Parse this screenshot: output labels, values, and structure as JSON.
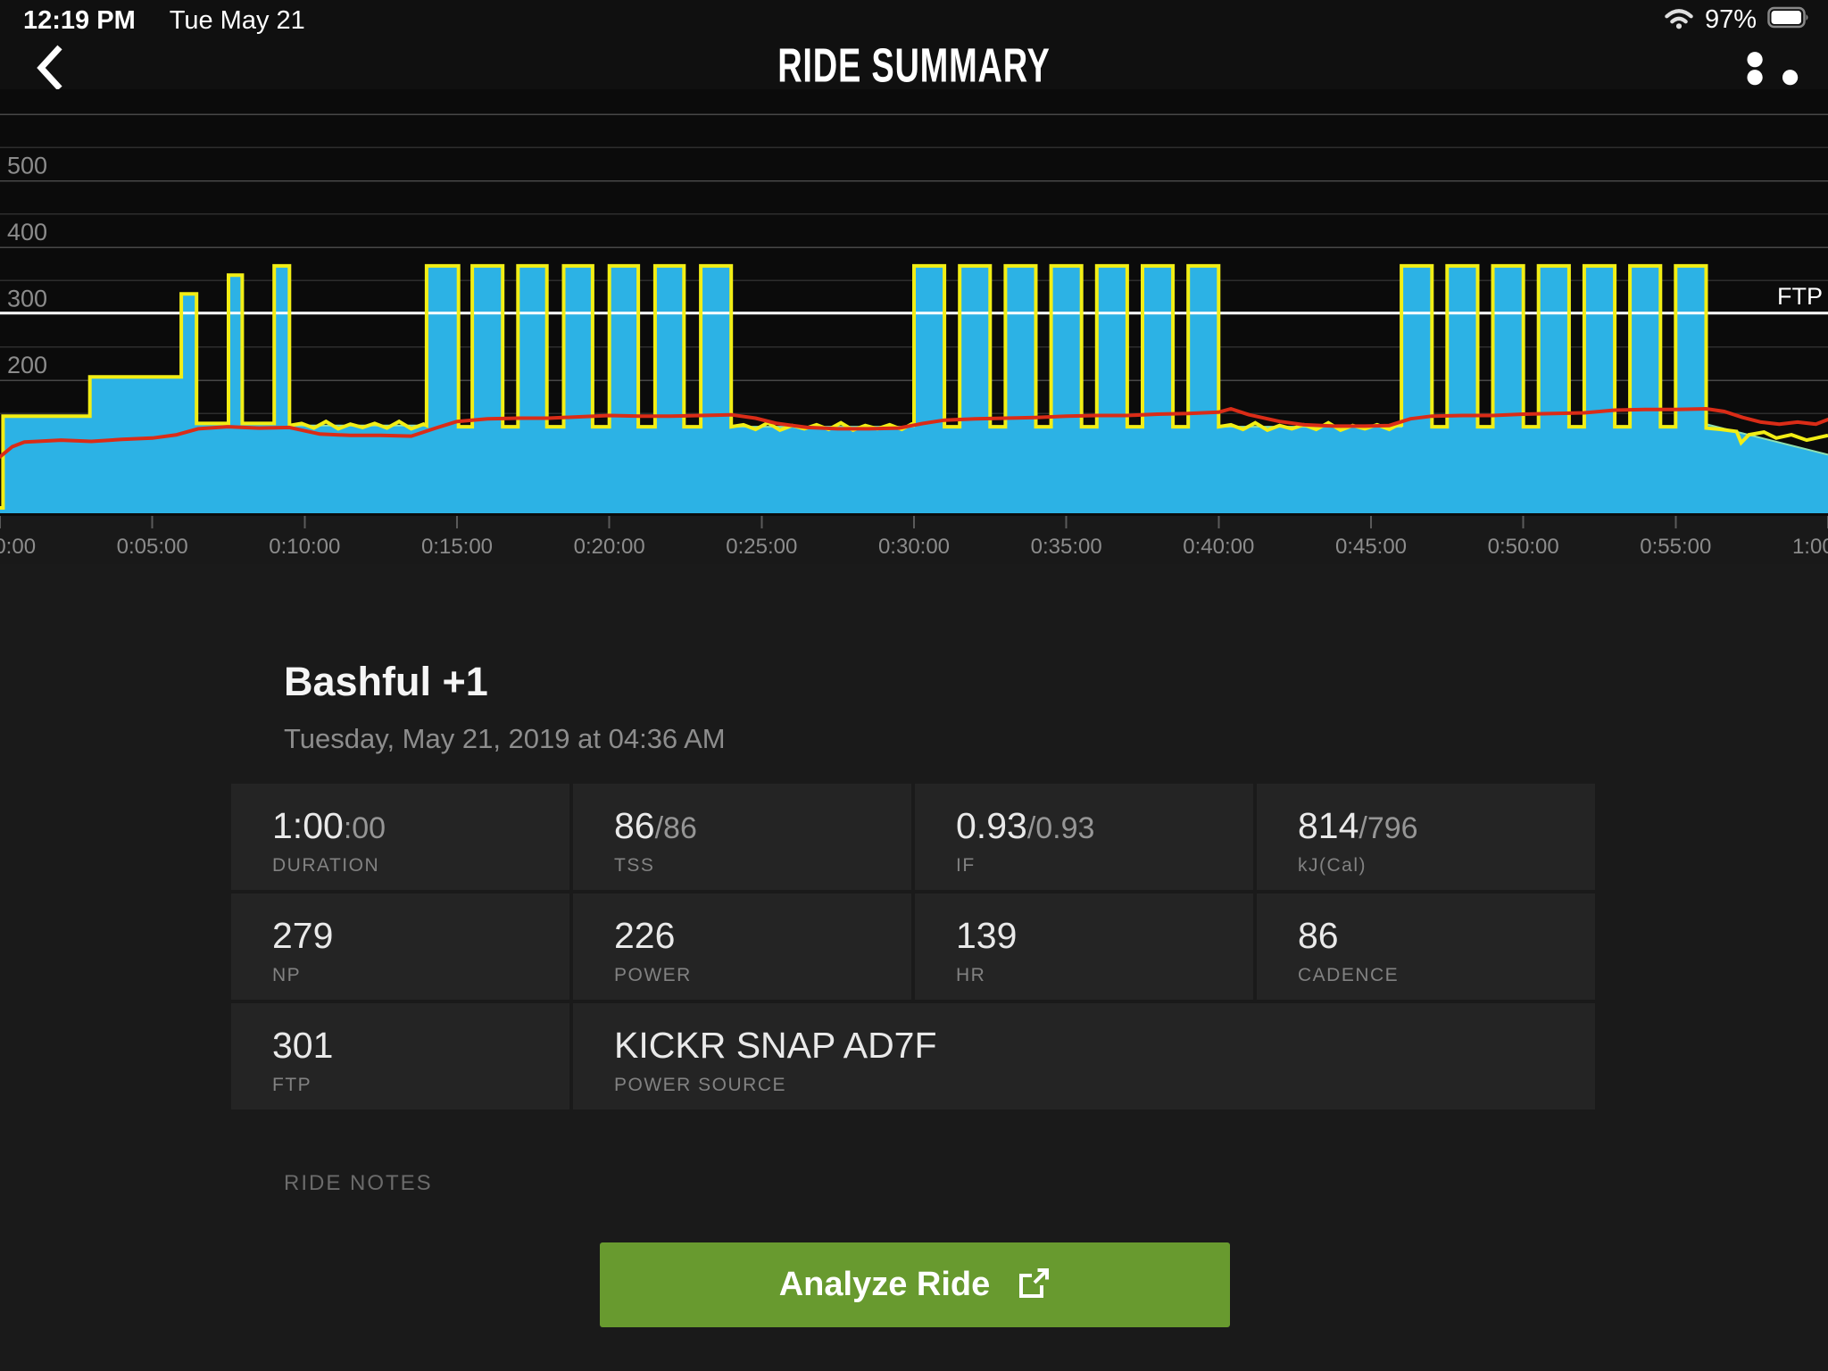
{
  "status_bar": {
    "time": "12:19 PM",
    "date": "Tue May 21",
    "battery": "97%"
  },
  "header": {
    "title": "RIDE SUMMARY"
  },
  "ride": {
    "title": "Bashful +1",
    "datetime": "Tuesday, May 21, 2019 at 04:36 AM"
  },
  "stats": {
    "cells": [
      {
        "primary": "1:00",
        "secondary": ":00",
        "label": "DURATION"
      },
      {
        "primary": "86",
        "secondary": "/86",
        "label": "TSS"
      },
      {
        "primary": "0.93",
        "secondary": "/0.93",
        "label": "IF"
      },
      {
        "primary": "814",
        "secondary": "/796",
        "label": "kJ(Cal)"
      },
      {
        "primary": "279",
        "secondary": "",
        "label": "NP"
      },
      {
        "primary": "226",
        "secondary": "",
        "label": "POWER"
      },
      {
        "primary": "139",
        "secondary": "",
        "label": "HR"
      },
      {
        "primary": "86",
        "secondary": "",
        "label": "CADENCE"
      },
      {
        "primary": "301",
        "secondary": "",
        "label": "FTP"
      },
      {
        "primary": "KICKR SNAP AD7F",
        "secondary": "",
        "label": "POWER SOURCE",
        "wide": true
      }
    ]
  },
  "ride_notes_label": "RIDE NOTES",
  "analyze_button": {
    "label": "Analyze Ride"
  },
  "chart_data": {
    "type": "area",
    "title": "",
    "x_unit": "minutes",
    "x_range": [
      0,
      60
    ],
    "y_unit": "watts",
    "y_axis_note": "power in watts; heart rate drawn on same pixel scale",
    "grid": true,
    "y_gridlines": [
      150,
      200,
      250,
      300,
      350,
      400,
      450,
      500,
      550,
      600
    ],
    "y_tick_labels": [
      200,
      300,
      400,
      500
    ],
    "x_ticks": [
      {
        "t": 0,
        "label": "0:00:00"
      },
      {
        "t": 5,
        "label": "0:05:00"
      },
      {
        "t": 10,
        "label": "0:10:00"
      },
      {
        "t": 15,
        "label": "0:15:00"
      },
      {
        "t": 20,
        "label": "0:20:00"
      },
      {
        "t": 25,
        "label": "0:25:00"
      },
      {
        "t": 30,
        "label": "0:30:00"
      },
      {
        "t": 35,
        "label": "0:35:00"
      },
      {
        "t": 40,
        "label": "0:40:00"
      },
      {
        "t": 45,
        "label": "0:45:00"
      },
      {
        "t": 50,
        "label": "0:50:00"
      },
      {
        "t": 55,
        "label": "0:55:00"
      },
      {
        "t": 60,
        "label": "1:00:00"
      }
    ],
    "ftp_line": {
      "value": 301,
      "label": "FTP",
      "color": "#ffffff"
    },
    "colors": {
      "target": "#f2ee15",
      "actual_fill": "#2cb2e5",
      "actual_edge": "#8fe0b0",
      "heart_rate": "#da2c17",
      "plot_bg": "#0b0b0b",
      "axis_strip_bg": "#191919",
      "gridline_major": "#474747",
      "gridline_minor": "#2d2d2d",
      "tick": "#5a5a5a",
      "axis_text": "#8c8c8c"
    },
    "series": [
      {
        "name": "target_power",
        "type": "step",
        "segments": [
          [
            0.0,
            0.1,
            8
          ],
          [
            0.1,
            2.95,
            146
          ],
          [
            2.95,
            5.95,
            205
          ],
          [
            5.95,
            6.45,
            330
          ],
          [
            6.45,
            7.5,
            135
          ],
          [
            7.5,
            7.95,
            358
          ],
          [
            7.95,
            9.0,
            135
          ],
          [
            9.0,
            9.5,
            372
          ],
          [
            9.5,
            14.0,
            132
          ],
          [
            14.0,
            15.05,
            372
          ],
          [
            15.05,
            15.5,
            130
          ],
          [
            15.5,
            16.5,
            372
          ],
          [
            16.5,
            17.0,
            130
          ],
          [
            17.0,
            17.95,
            372
          ],
          [
            17.95,
            18.5,
            130
          ],
          [
            18.5,
            19.45,
            372
          ],
          [
            19.45,
            20.0,
            130
          ],
          [
            20.0,
            20.95,
            372
          ],
          [
            20.95,
            21.5,
            130
          ],
          [
            21.5,
            22.45,
            372
          ],
          [
            22.45,
            23.0,
            130
          ],
          [
            23.0,
            24.0,
            372
          ],
          [
            24.0,
            30.0,
            130
          ],
          [
            30.0,
            31.0,
            372
          ],
          [
            31.0,
            31.5,
            130
          ],
          [
            31.5,
            32.5,
            372
          ],
          [
            32.5,
            33.0,
            130
          ],
          [
            33.0,
            34.0,
            372
          ],
          [
            34.0,
            34.5,
            130
          ],
          [
            34.5,
            35.5,
            372
          ],
          [
            35.5,
            36.0,
            130
          ],
          [
            36.0,
            37.0,
            372
          ],
          [
            37.0,
            37.5,
            130
          ],
          [
            37.5,
            38.5,
            372
          ],
          [
            38.5,
            39.0,
            130
          ],
          [
            39.0,
            40.0,
            372
          ],
          [
            40.0,
            46.0,
            130
          ],
          [
            46.0,
            47.0,
            372
          ],
          [
            47.0,
            47.5,
            130
          ],
          [
            47.5,
            48.5,
            372
          ],
          [
            48.5,
            49.0,
            130
          ],
          [
            49.0,
            50.0,
            372
          ],
          [
            50.0,
            50.5,
            130
          ],
          [
            50.5,
            51.5,
            372
          ],
          [
            51.5,
            52.0,
            130
          ],
          [
            52.0,
            53.0,
            372
          ],
          [
            53.0,
            53.5,
            130
          ],
          [
            53.5,
            54.5,
            372
          ],
          [
            54.5,
            55.0,
            130
          ],
          [
            55.0,
            56.0,
            372
          ]
        ],
        "cooldown_points": [
          [
            56.0,
            128
          ],
          [
            56.5,
            126
          ],
          [
            57.0,
            123
          ],
          [
            57.15,
            106
          ],
          [
            57.4,
            118
          ],
          [
            57.9,
            122
          ],
          [
            58.3,
            113
          ],
          [
            58.8,
            118
          ],
          [
            59.3,
            110
          ],
          [
            59.7,
            114
          ],
          [
            60.0,
            117
          ]
        ]
      },
      {
        "name": "actual_power",
        "type": "area-step",
        "follows": "target_power",
        "cooldown_ramp": [
          [
            56.0,
            134
          ],
          [
            60.0,
            88
          ]
        ]
      },
      {
        "name": "heart_rate",
        "type": "line",
        "points": [
          [
            0,
            85
          ],
          [
            0.4,
            100
          ],
          [
            0.8,
            107
          ],
          [
            2,
            110
          ],
          [
            3,
            108
          ],
          [
            4,
            111
          ],
          [
            5,
            113
          ],
          [
            5.8,
            118
          ],
          [
            6.5,
            127
          ],
          [
            7.5,
            130
          ],
          [
            8.5,
            128
          ],
          [
            9.5,
            129
          ],
          [
            10.5,
            119
          ],
          [
            11.5,
            117
          ],
          [
            12.5,
            117
          ],
          [
            13.5,
            116
          ],
          [
            14.3,
            128
          ],
          [
            15,
            138
          ],
          [
            16,
            142
          ],
          [
            17,
            143
          ],
          [
            18,
            143
          ],
          [
            19,
            145
          ],
          [
            20,
            147
          ],
          [
            21,
            146
          ],
          [
            22,
            146
          ],
          [
            23,
            147
          ],
          [
            24,
            148
          ],
          [
            24.8,
            143
          ],
          [
            25.5,
            135
          ],
          [
            26.5,
            129
          ],
          [
            27.5,
            127
          ],
          [
            28.5,
            127
          ],
          [
            29.5,
            128
          ],
          [
            30.3,
            135
          ],
          [
            31,
            140
          ],
          [
            32,
            142
          ],
          [
            33,
            143
          ],
          [
            34,
            144
          ],
          [
            35,
            146
          ],
          [
            36,
            147
          ],
          [
            37,
            147
          ],
          [
            38,
            149
          ],
          [
            39,
            150
          ],
          [
            40,
            152
          ],
          [
            40.4,
            157
          ],
          [
            41,
            148
          ],
          [
            42,
            138
          ],
          [
            42.8,
            133
          ],
          [
            43.8,
            131
          ],
          [
            44.8,
            131
          ],
          [
            45.6,
            132
          ],
          [
            46.3,
            142
          ],
          [
            47,
            146
          ],
          [
            48,
            147
          ],
          [
            49,
            147
          ],
          [
            50,
            149
          ],
          [
            51,
            150
          ],
          [
            52,
            151
          ],
          [
            53,
            155
          ],
          [
            54,
            156
          ],
          [
            55,
            156
          ],
          [
            56,
            157
          ],
          [
            56.6,
            153
          ],
          [
            57.2,
            144
          ],
          [
            57.8,
            137
          ],
          [
            58.4,
            134
          ],
          [
            59,
            137
          ],
          [
            59.6,
            134
          ],
          [
            60,
            141
          ]
        ]
      }
    ]
  }
}
